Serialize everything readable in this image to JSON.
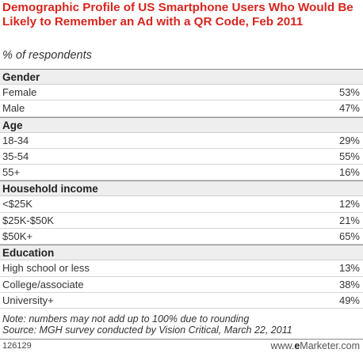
{
  "chart_data": {
    "type": "table",
    "title": "Demographic Profile of US Smartphone Users Who Would Be Likely to Remember an Ad with a QR Code, Feb 2011",
    "subtitle": "% of respondents",
    "sections": [
      {
        "name": "Gender",
        "rows": [
          {
            "label": "Female",
            "value": "53%"
          },
          {
            "label": "Male",
            "value": "47%"
          }
        ]
      },
      {
        "name": "Age",
        "rows": [
          {
            "label": "18-34",
            "value": "29%"
          },
          {
            "label": "35-54",
            "value": "55%"
          },
          {
            "label": "55+",
            "value": "16%"
          }
        ]
      },
      {
        "name": "Household income",
        "rows": [
          {
            "label": "<$25K",
            "value": "12%"
          },
          {
            "label": "$25K-$50K",
            "value": "21%"
          },
          {
            "label": "$50K+",
            "value": "65%"
          }
        ]
      },
      {
        "name": "Education",
        "rows": [
          {
            "label": "High school or less",
            "value": "13%"
          },
          {
            "label": "College/associate",
            "value": "38%"
          },
          {
            "label": "University+",
            "value": "49%"
          }
        ]
      }
    ],
    "note": "Note: numbers may not add up to 100% due to rounding",
    "source": "Source: MGH survey conducted by Vision Critical, March 22, 2011"
  },
  "footer": {
    "chart_id": "126129",
    "brand_prefix": "www.",
    "brand_bold": "e",
    "brand_suffix": "Marketer.com"
  },
  "colors": {
    "title": "#d7261e",
    "section_bg": "#eeeeee",
    "rule": "#8a8a8a"
  }
}
